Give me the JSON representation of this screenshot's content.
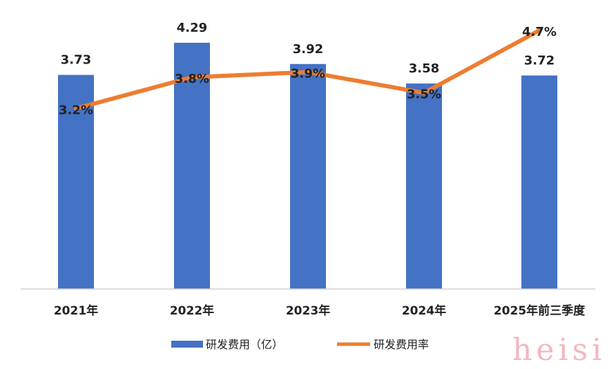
{
  "chart_data": {
    "type": "bar",
    "categories": [
      "2021年",
      "2022年",
      "2023年",
      "2024年",
      "2025年前三季度"
    ],
    "series": [
      {
        "name": "研发费用（亿）",
        "type": "bar",
        "values": [
          3.73,
          4.29,
          3.92,
          3.58,
          3.72
        ],
        "labels": [
          "3.73",
          "4.29",
          "3.92",
          "3.58",
          "3.72"
        ],
        "color": "#4472C4"
      },
      {
        "name": "研发费用率",
        "type": "line",
        "values": [
          3.2,
          3.8,
          3.9,
          3.5,
          4.7
        ],
        "labels": [
          "3.2%",
          "3.8%",
          "3.9%",
          "3.5%",
          "4.7%"
        ],
        "color": "#ED7D31"
      }
    ],
    "grid": false,
    "legend": "bottom"
  },
  "watermark": "heisi"
}
